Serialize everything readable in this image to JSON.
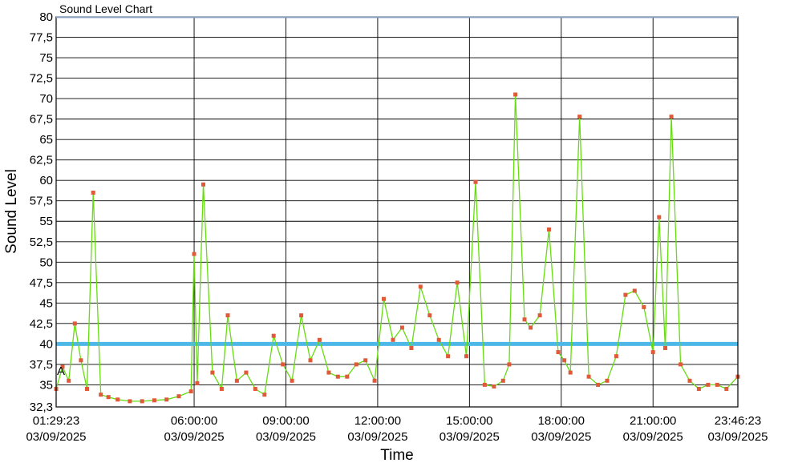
{
  "chart_data": {
    "type": "line",
    "title": "Sound Level Chart",
    "xlabel": "Time",
    "ylabel": "Sound Level",
    "ylim": [
      32.3,
      80
    ],
    "y_ticks": [
      "32,3",
      "35",
      "37,5",
      "40",
      "42,5",
      "45",
      "47,5",
      "50",
      "52,5",
      "55",
      "57,5",
      "60",
      "62,5",
      "65",
      "67,5",
      "70",
      "72,5",
      "75",
      "77,5",
      "80"
    ],
    "x_range_hours": [
      1.4897,
      23.7731
    ],
    "x_ticks": [
      {
        "time": "01:29:23",
        "date": "03/09/2025"
      },
      {
        "time": "06:00:00",
        "date": "03/09/2025"
      },
      {
        "time": "09:00:00",
        "date": "03/09/2025"
      },
      {
        "time": "12:00:00",
        "date": "03/09/2025"
      },
      {
        "time": "15:00:00",
        "date": "03/09/2025"
      },
      {
        "time": "18:00:00",
        "date": "03/09/2025"
      },
      {
        "time": "21:00:00",
        "date": "03/09/2025"
      },
      {
        "time": "23:46:23",
        "date": "03/09/2025"
      }
    ],
    "threshold": {
      "value": 40,
      "color": "#4db8e8"
    },
    "annotation": "A",
    "grid": true,
    "series": [
      {
        "line_color": "#66dd11",
        "marker_color": "#e05a3a",
        "x_hours": [
          1.49,
          1.7,
          1.9,
          2.1,
          2.3,
          2.5,
          2.7,
          2.95,
          3.2,
          3.5,
          3.9,
          4.3,
          4.7,
          5.1,
          5.5,
          5.9,
          6.0,
          6.1,
          6.3,
          6.6,
          6.9,
          7.1,
          7.4,
          7.7,
          8.0,
          8.3,
          8.6,
          8.9,
          9.2,
          9.5,
          9.8,
          10.1,
          10.4,
          10.7,
          11.0,
          11.3,
          11.6,
          11.9,
          12.2,
          12.5,
          12.8,
          13.1,
          13.4,
          13.7,
          14.0,
          14.3,
          14.6,
          14.9,
          15.2,
          15.5,
          15.8,
          16.1,
          16.3,
          16.5,
          16.8,
          17.0,
          17.3,
          17.6,
          17.9,
          18.1,
          18.3,
          18.6,
          18.9,
          19.2,
          19.5,
          19.8,
          20.1,
          20.4,
          20.7,
          21.0,
          21.2,
          21.4,
          21.6,
          21.9,
          22.2,
          22.5,
          22.8,
          23.1,
          23.4,
          23.77
        ],
        "y_values": [
          34.5,
          37.2,
          35.5,
          42.5,
          38.0,
          34.5,
          58.5,
          33.8,
          33.5,
          33.2,
          33.0,
          33.0,
          33.1,
          33.2,
          33.6,
          34.2,
          51.0,
          35.2,
          59.5,
          36.5,
          34.5,
          43.5,
          35.5,
          36.5,
          34.5,
          33.8,
          41.0,
          37.5,
          35.5,
          43.5,
          38.0,
          40.5,
          36.5,
          36.0,
          36.0,
          37.5,
          38.0,
          35.5,
          45.5,
          40.5,
          42.0,
          39.5,
          47.0,
          43.5,
          40.5,
          38.5,
          47.5,
          38.5,
          59.8,
          35.0,
          34.8,
          35.5,
          37.5,
          70.5,
          43.0,
          42.0,
          43.5,
          54.0,
          39.0,
          38.0,
          36.5,
          67.8,
          36.0,
          35.0,
          35.5,
          38.5,
          46.0,
          46.5,
          44.5,
          39.0,
          55.5,
          39.5,
          67.8,
          37.5,
          35.5,
          34.5,
          35.0,
          35.0,
          34.5,
          36.0
        ]
      }
    ]
  }
}
